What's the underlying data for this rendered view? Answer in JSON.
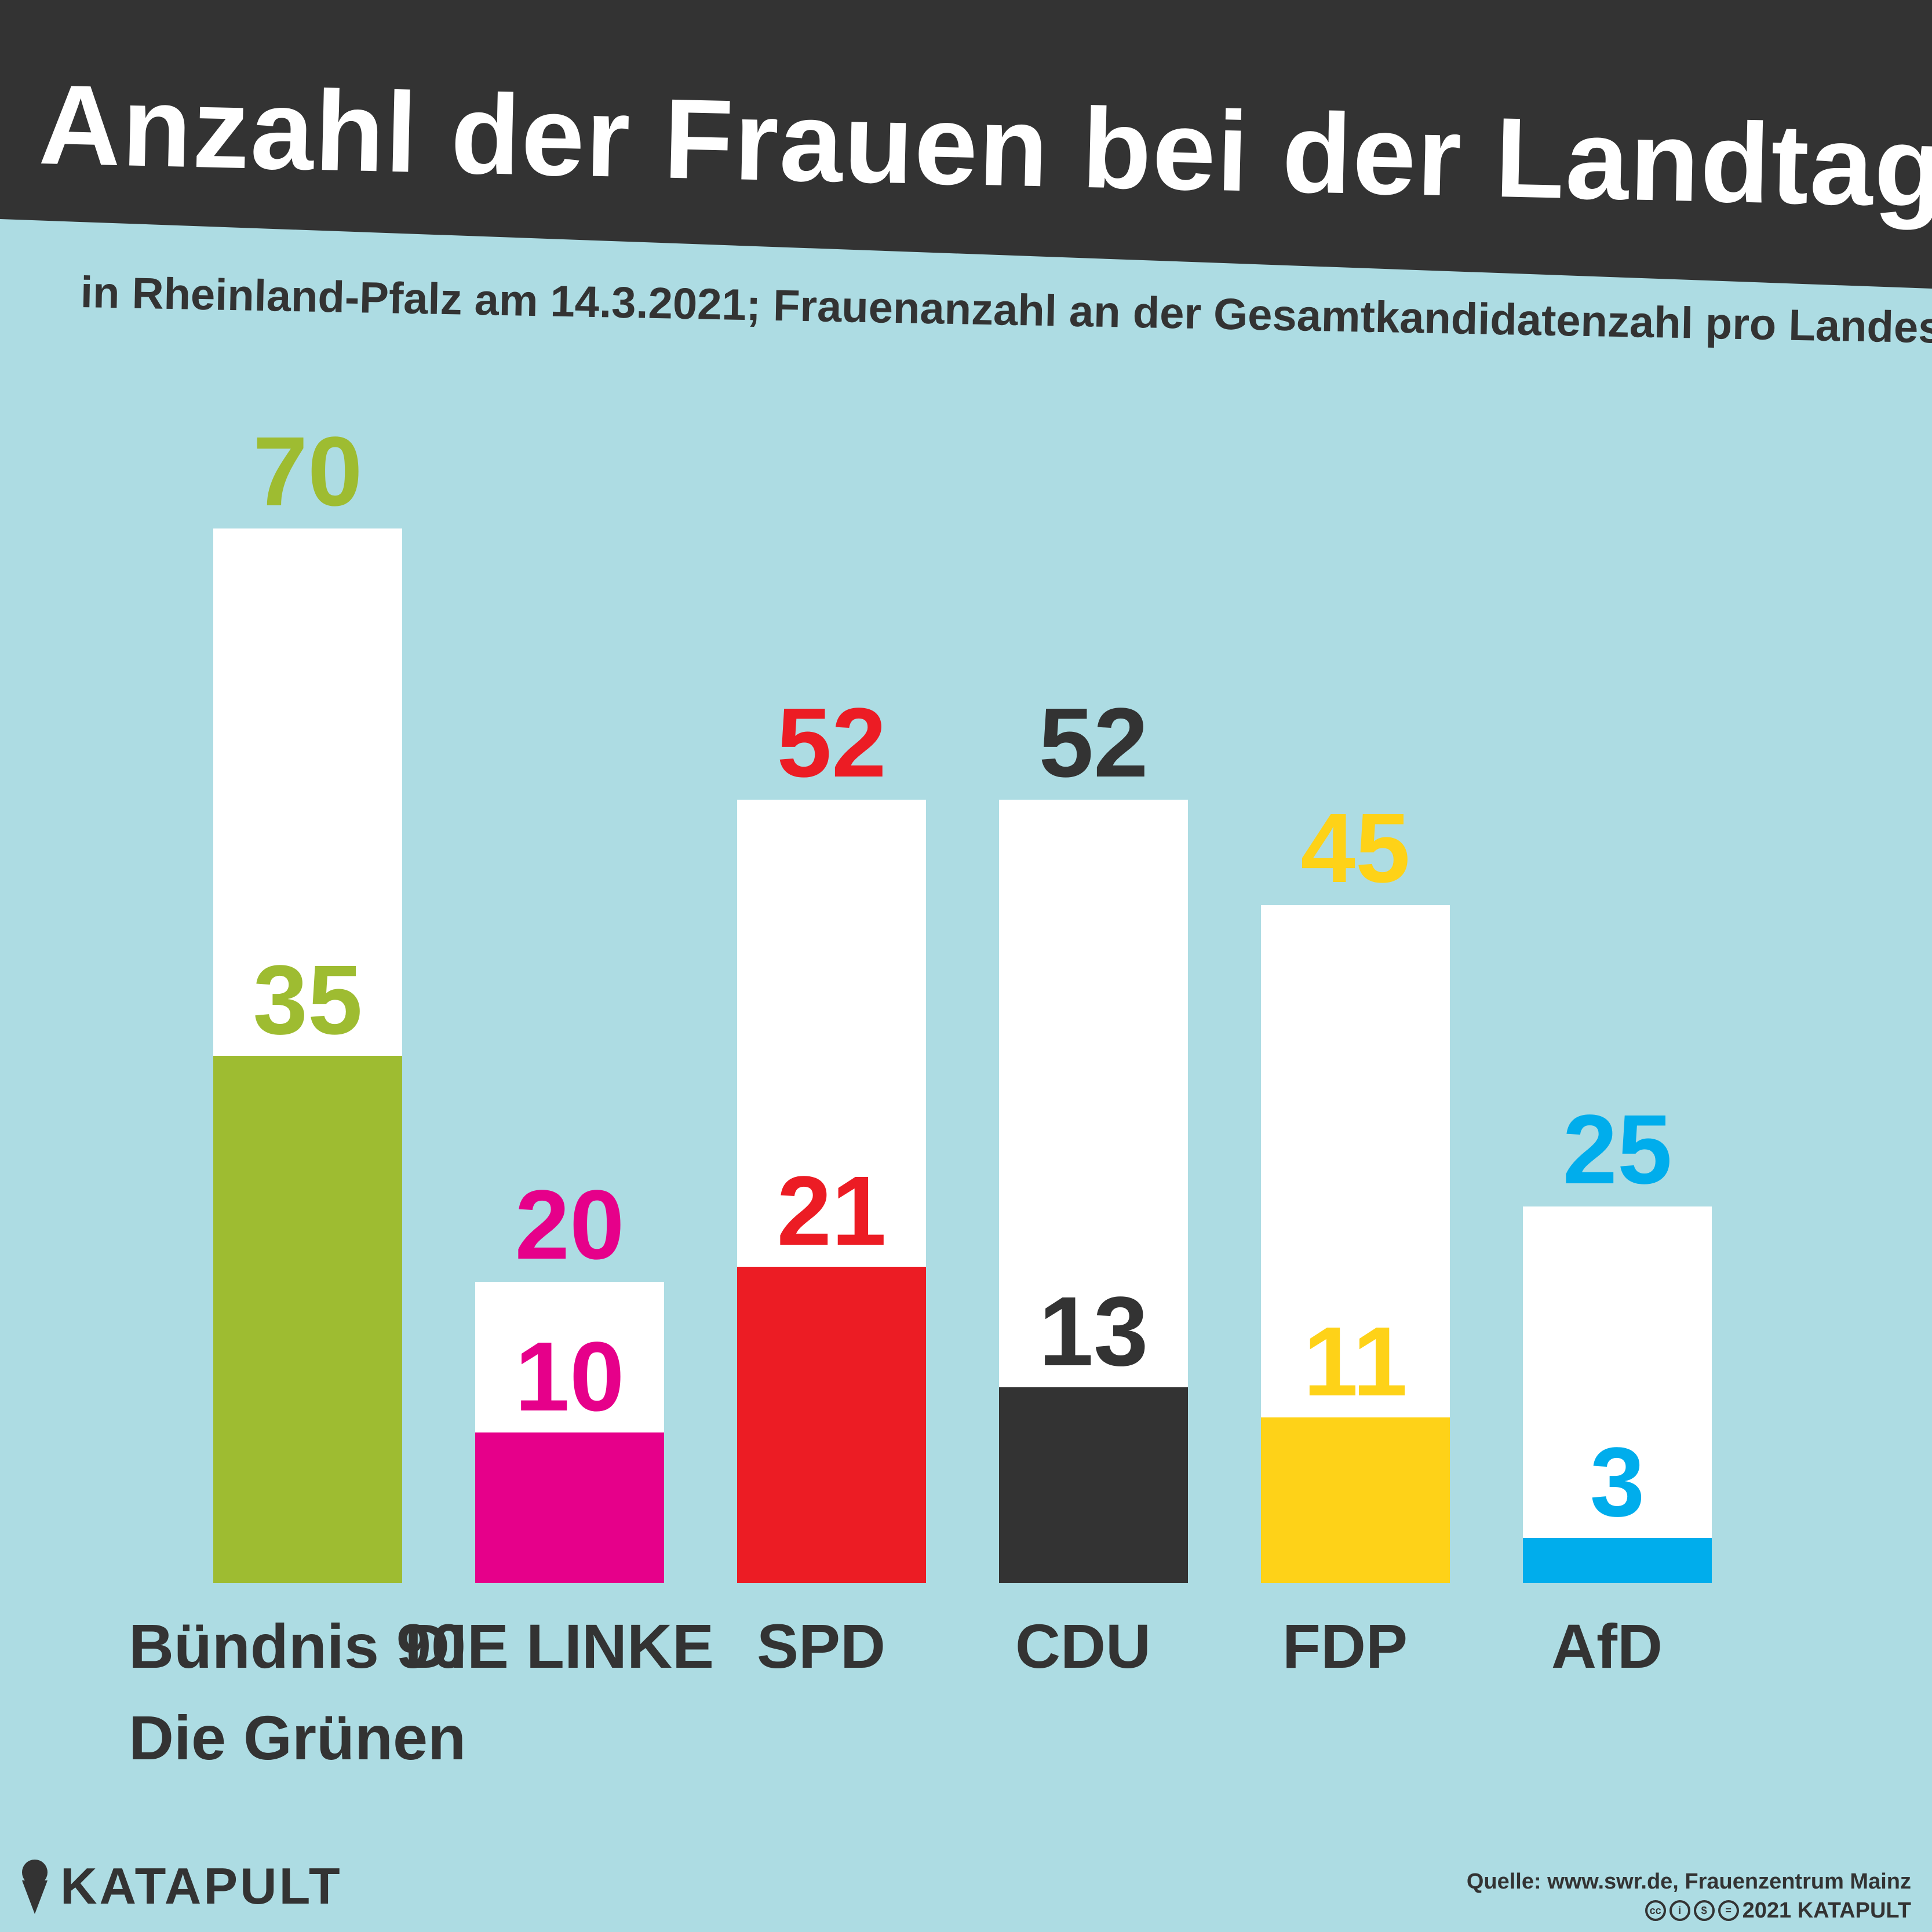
{
  "header": {
    "title": "Anzahl der Frauen bei der Landtagswahl",
    "subtitle": "in Rheinland-Pfalz am 14.3.2021; Frauenanzahl an der Gesamtkandidatenzahl pro Landesliste",
    "band_color": "#333333"
  },
  "chart_data": {
    "type": "bar",
    "stacked_overlay": true,
    "categories": [
      "Bündnis 90 Die Grünen",
      "DIE LINKE",
      "SPD",
      "CDU",
      "FDP",
      "AfD"
    ],
    "category_lines": [
      [
        "Bündnis 90",
        "Die Grünen"
      ],
      [
        "DIE LINKE"
      ],
      [
        "SPD"
      ],
      [
        "CDU"
      ],
      [
        "FDP"
      ],
      [
        "AfD"
      ]
    ],
    "totals": [
      70,
      20,
      52,
      52,
      45,
      25
    ],
    "women": [
      35,
      10,
      21,
      13,
      11,
      3
    ],
    "colors": [
      "#9ebc31",
      "#e6008a",
      "#ec1c24",
      "#333333",
      "#fed218",
      "#00adec"
    ],
    "total_bar_color": "#ffffff",
    "ylim": [
      0,
      70
    ],
    "grid": false,
    "legend": "none"
  },
  "footer": {
    "brand": "KATAPULT",
    "source": "Quelle: www.swr.de, Frauenzentrum Mainz",
    "license": "2021 KATAPULT",
    "license_icons": [
      "cc",
      "by",
      "nc",
      "nd"
    ]
  }
}
